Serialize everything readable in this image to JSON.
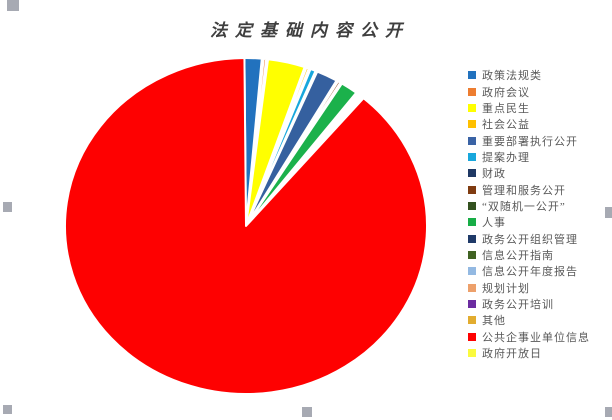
{
  "window": {
    "background_color": "#ffffff",
    "selection_handle_color": "#a7aab3"
  },
  "chart": {
    "title": "法定基础内容公开",
    "title_color": "#3f3f3f",
    "legend_text_color": "#595959"
  },
  "chart_data": {
    "type": "pie",
    "title": "法定基础内容公开",
    "legend_position": "right",
    "legend": [
      {
        "label": "政策法规类",
        "color": "#2272be"
      },
      {
        "label": "政府会议",
        "color": "#ed7d31"
      },
      {
        "label": "重点民生",
        "color": "#ffff00"
      },
      {
        "label": "社会公益",
        "color": "#ffc000"
      },
      {
        "label": "重要部署执行公开",
        "color": "#3a63a5"
      },
      {
        "label": "提案办理",
        "color": "#18a7dc"
      },
      {
        "label": "财政",
        "color": "#1f3864"
      },
      {
        "label": "管理和服务公开",
        "color": "#7f3b10"
      },
      {
        "label": "“双随机一公开”",
        "color": "#33511f"
      },
      {
        "label": "人事",
        "color": "#17ad46"
      },
      {
        "label": "政务公开组织管理",
        "color": "#1f3a68"
      },
      {
        "label": "信息公开指南",
        "color": "#406222"
      },
      {
        "label": "信息公开年度报告",
        "color": "#93b9e2"
      },
      {
        "label": "规划计划",
        "color": "#eda06b"
      },
      {
        "label": "政务公开培训",
        "color": "#6b2ca0"
      },
      {
        "label": "其他",
        "color": "#e2ac2f"
      },
      {
        "label": "公共企事业单位信息",
        "color": "#fe0101"
      },
      {
        "label": "政府开放日",
        "color": "#fafa3e"
      }
    ],
    "slices": [
      {
        "label": "政策法规类",
        "color": "#2272be",
        "pct": 1.5,
        "start": -0.5,
        "end": 5.0
      },
      {
        "label": "政府会议",
        "color": "#ed7d31",
        "pct": 0.2,
        "start": 5.6,
        "end": 6.4
      },
      {
        "label": "重点民生",
        "color": "#ffff00",
        "pct": 3.3,
        "start": 7.0,
        "end": 18.9
      },
      {
        "label": "社会公益",
        "color": "#ffc000",
        "pct": 0.2,
        "start": 19.5,
        "end": 20.3
      },
      {
        "label": "提案办理",
        "color": "#18a7dc",
        "pct": 0.5,
        "start": 20.9,
        "end": 22.6
      },
      {
        "label": "重要部署执行公开",
        "color": "#35609f",
        "pct": 1.9,
        "start": 23.2,
        "end": 30.0
      },
      {
        "label": "管理和服务公开",
        "color": "#8a3a10",
        "pct": 0.2,
        "start": 30.6,
        "end": 31.4
      },
      {
        "label": "人事",
        "color": "#1bb14b",
        "pct": 1.5,
        "start": 32.0,
        "end": 37.5
      },
      {
        "label": "公共企事业单位信息",
        "color": "#fe0101",
        "pct": 90.7,
        "start": 40.5,
        "end": 359.5
      }
    ],
    "values_pct_by_category": [
      1.5,
      0.2,
      3.3,
      0.2,
      1.9,
      0.5,
      0,
      0.2,
      0,
      1.5,
      0,
      0,
      0,
      0,
      0,
      0,
      90.7,
      0
    ]
  }
}
